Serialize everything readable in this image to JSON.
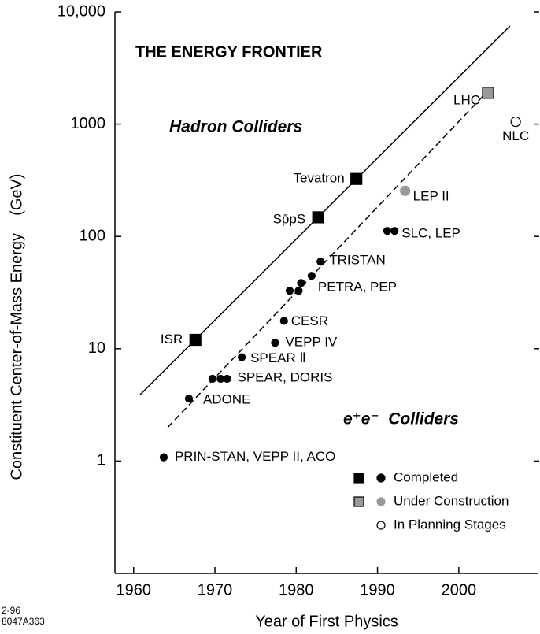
{
  "chart_data": {
    "type": "scatter",
    "title": "THE ENERGY FRONTIER",
    "annotations": [
      "Hadron Colliders",
      "e⁺e⁻  Colliders"
    ],
    "xlabel": "Year of First Physics",
    "ylabel": "Constituent Center-of-Mass Energy    (GeV)",
    "footnote": [
      "2-96",
      "8047A363"
    ],
    "log_y": true,
    "xlim": [
      1957.7,
      2009.7
    ],
    "ylim": [
      0.1,
      10000
    ],
    "xticks": [
      1960,
      1970,
      1980,
      1990,
      2000
    ],
    "yticks": [
      1,
      10,
      100,
      1000,
      {
        "value": 10000,
        "label": "10,000"
      }
    ],
    "lines": [
      {
        "style": "solid",
        "x": [
          1960.8,
          2006.3
        ],
        "values": [
          3.9,
          7480
        ]
      },
      {
        "style": "dashed",
        "x": [
          1964.2,
          2003.8
        ],
        "values": [
          2.0,
          2050
        ]
      }
    ],
    "series": [
      {
        "name": "ISR",
        "marker": "square",
        "color": "#000",
        "x": [
          1967.6
        ],
        "values": [
          12
        ]
      },
      {
        "name": "Sp̄pS",
        "marker": "square",
        "color": "#000",
        "x": [
          1982.7
        ],
        "values": [
          148
        ]
      },
      {
        "name": "Tevatron",
        "marker": "square",
        "color": "#000",
        "x": [
          1987.4
        ],
        "values": [
          325
        ]
      },
      {
        "name": "LHC",
        "marker": "square",
        "color": "#999",
        "x": [
          2003.6
        ],
        "values": [
          1900
        ]
      },
      {
        "name": "LEP II",
        "marker": "circle",
        "color": "#999",
        "x": [
          1993.4
        ],
        "values": [
          255
        ]
      },
      {
        "name": "NLC",
        "marker": "circle",
        "color": "#fff",
        "x": [
          2007.0
        ],
        "values": [
          1050
        ]
      },
      {
        "name": "PRIN-STAN, VEPP II, ACO",
        "marker": "circle",
        "color": "#000",
        "x": [
          1963.7
        ],
        "values": [
          1.08
        ]
      },
      {
        "name": "ADONE",
        "marker": "circle",
        "color": "#000",
        "x": [
          1966.8
        ],
        "values": [
          3.6
        ]
      },
      {
        "name": "SPEAR, DORIS",
        "marker": "circle",
        "color": "#000",
        "x": [
          1969.7,
          1970.7,
          1971.5
        ],
        "values": [
          5.4,
          5.4,
          5.4
        ]
      },
      {
        "name": "SPEAR Ⅱ",
        "marker": "circle",
        "color": "#000",
        "x": [
          1973.3
        ],
        "values": [
          8.4
        ]
      },
      {
        "name": "VEPP IV",
        "marker": "circle",
        "color": "#000",
        "x": [
          1977.4
        ],
        "values": [
          11.3
        ]
      },
      {
        "name": "CESR",
        "marker": "circle",
        "color": "#000",
        "x": [
          1978.5
        ],
        "values": [
          17.7
        ]
      },
      {
        "name": "PETRA, PEP",
        "marker": "circle",
        "color": "#000",
        "x": [
          1979.2,
          1980.3,
          1980.6,
          1981.9
        ],
        "values": [
          32.8,
          32.8,
          38.5,
          44.6
        ]
      },
      {
        "name": "TRISTAN",
        "marker": "circle",
        "color": "#000",
        "x": [
          1983.0
        ],
        "values": [
          59.6
        ]
      },
      {
        "name": "SLC, LEP",
        "marker": "circle",
        "color": "#000",
        "x": [
          1991.2,
          1992.1
        ],
        "values": [
          112,
          112
        ]
      }
    ],
    "legend": [
      {
        "label": "Completed",
        "square": "#000",
        "circle": "#000"
      },
      {
        "label": "Under Construction",
        "square": "#999",
        "circle": "#999"
      },
      {
        "label": "In Planning Stages",
        "circle": "#fff"
      }
    ]
  }
}
